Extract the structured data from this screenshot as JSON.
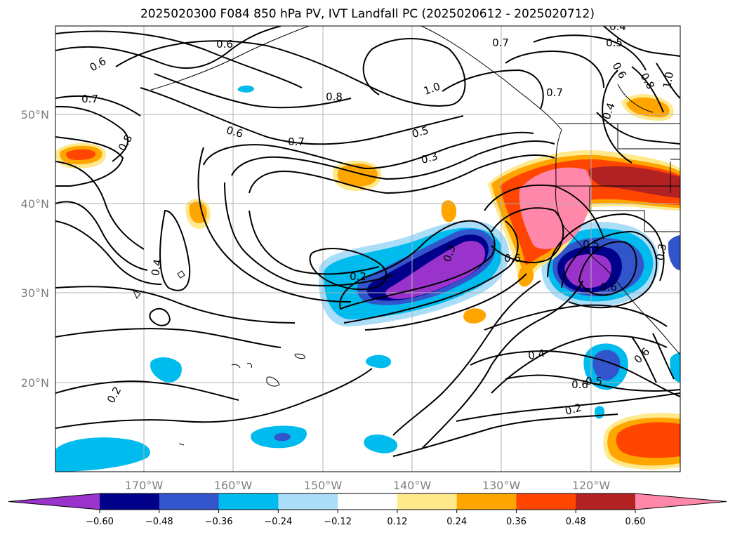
{
  "title": "2025020300 F084 850 hPa PV, IVT Landfall PC (2025020612 - 2025020712)",
  "map": {
    "lon_ticks": [
      "170°W",
      "160°W",
      "150°W",
      "140°W",
      "130°W",
      "120°W"
    ],
    "lat_ticks": [
      "50°N",
      "40°N",
      "30°N",
      "20°N"
    ],
    "gridlines": true,
    "contour_labels": [
      {
        "text": "0.6"
      },
      {
        "text": "0.6"
      },
      {
        "text": "0.7"
      },
      {
        "text": "0.8"
      },
      {
        "text": "0.8"
      },
      {
        "text": "0.6"
      },
      {
        "text": "0.7"
      },
      {
        "text": "1.0"
      },
      {
        "text": "0.5"
      },
      {
        "text": "0.3"
      },
      {
        "text": "0.7"
      },
      {
        "text": "0.7"
      },
      {
        "text": "0.5"
      },
      {
        "text": "0.4"
      },
      {
        "text": "0.6"
      },
      {
        "text": "0.8"
      },
      {
        "text": "1.0"
      },
      {
        "text": "0.4"
      },
      {
        "text": "0.4"
      },
      {
        "text": "0.2"
      },
      {
        "text": "0.3"
      },
      {
        "text": "0.6"
      },
      {
        "text": "0.5"
      },
      {
        "text": "0.6"
      },
      {
        "text": "0.3"
      },
      {
        "text": "0.4"
      },
      {
        "text": "0.6"
      },
      {
        "text": "0.6"
      },
      {
        "text": "0.5"
      },
      {
        "text": "0.2"
      },
      {
        "text": "0.2"
      }
    ]
  },
  "colorbar": {
    "colors": [
      "#9933cc",
      "#00008b",
      "#3355cc",
      "#00bbee",
      "#aaddf8",
      "#ffffff",
      "#ffe98a",
      "#ffa500",
      "#ff4500",
      "#b22222",
      "#ff88aa"
    ],
    "ticks": [
      "−0.60",
      "−0.48",
      "−0.36",
      "−0.24",
      "−0.12",
      "0.12",
      "0.24",
      "0.36",
      "0.48",
      "0.60"
    ]
  }
}
